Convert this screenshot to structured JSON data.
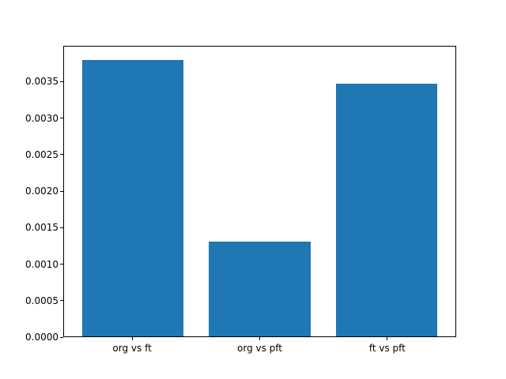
{
  "figure": {
    "background_color": "#ffffff",
    "spine_color": "#000000",
    "text_color": "#000000"
  },
  "chart_data": {
    "type": "bar",
    "title": "",
    "xlabel": "",
    "ylabel": "",
    "categories": [
      "org vs ft",
      "org vs pft",
      "ft vs pft"
    ],
    "values": [
      0.0038,
      0.0013,
      0.00348
    ],
    "bar_color": "#1f77b4",
    "bar_width_fraction": 0.8,
    "ylim": [
      0,
      0.00399
    ],
    "yticks": [
      "0.0000",
      "0.0005",
      "0.0010",
      "0.0015",
      "0.0020",
      "0.0025",
      "0.0030",
      "0.0035"
    ],
    "grid": false,
    "legend": null
  }
}
